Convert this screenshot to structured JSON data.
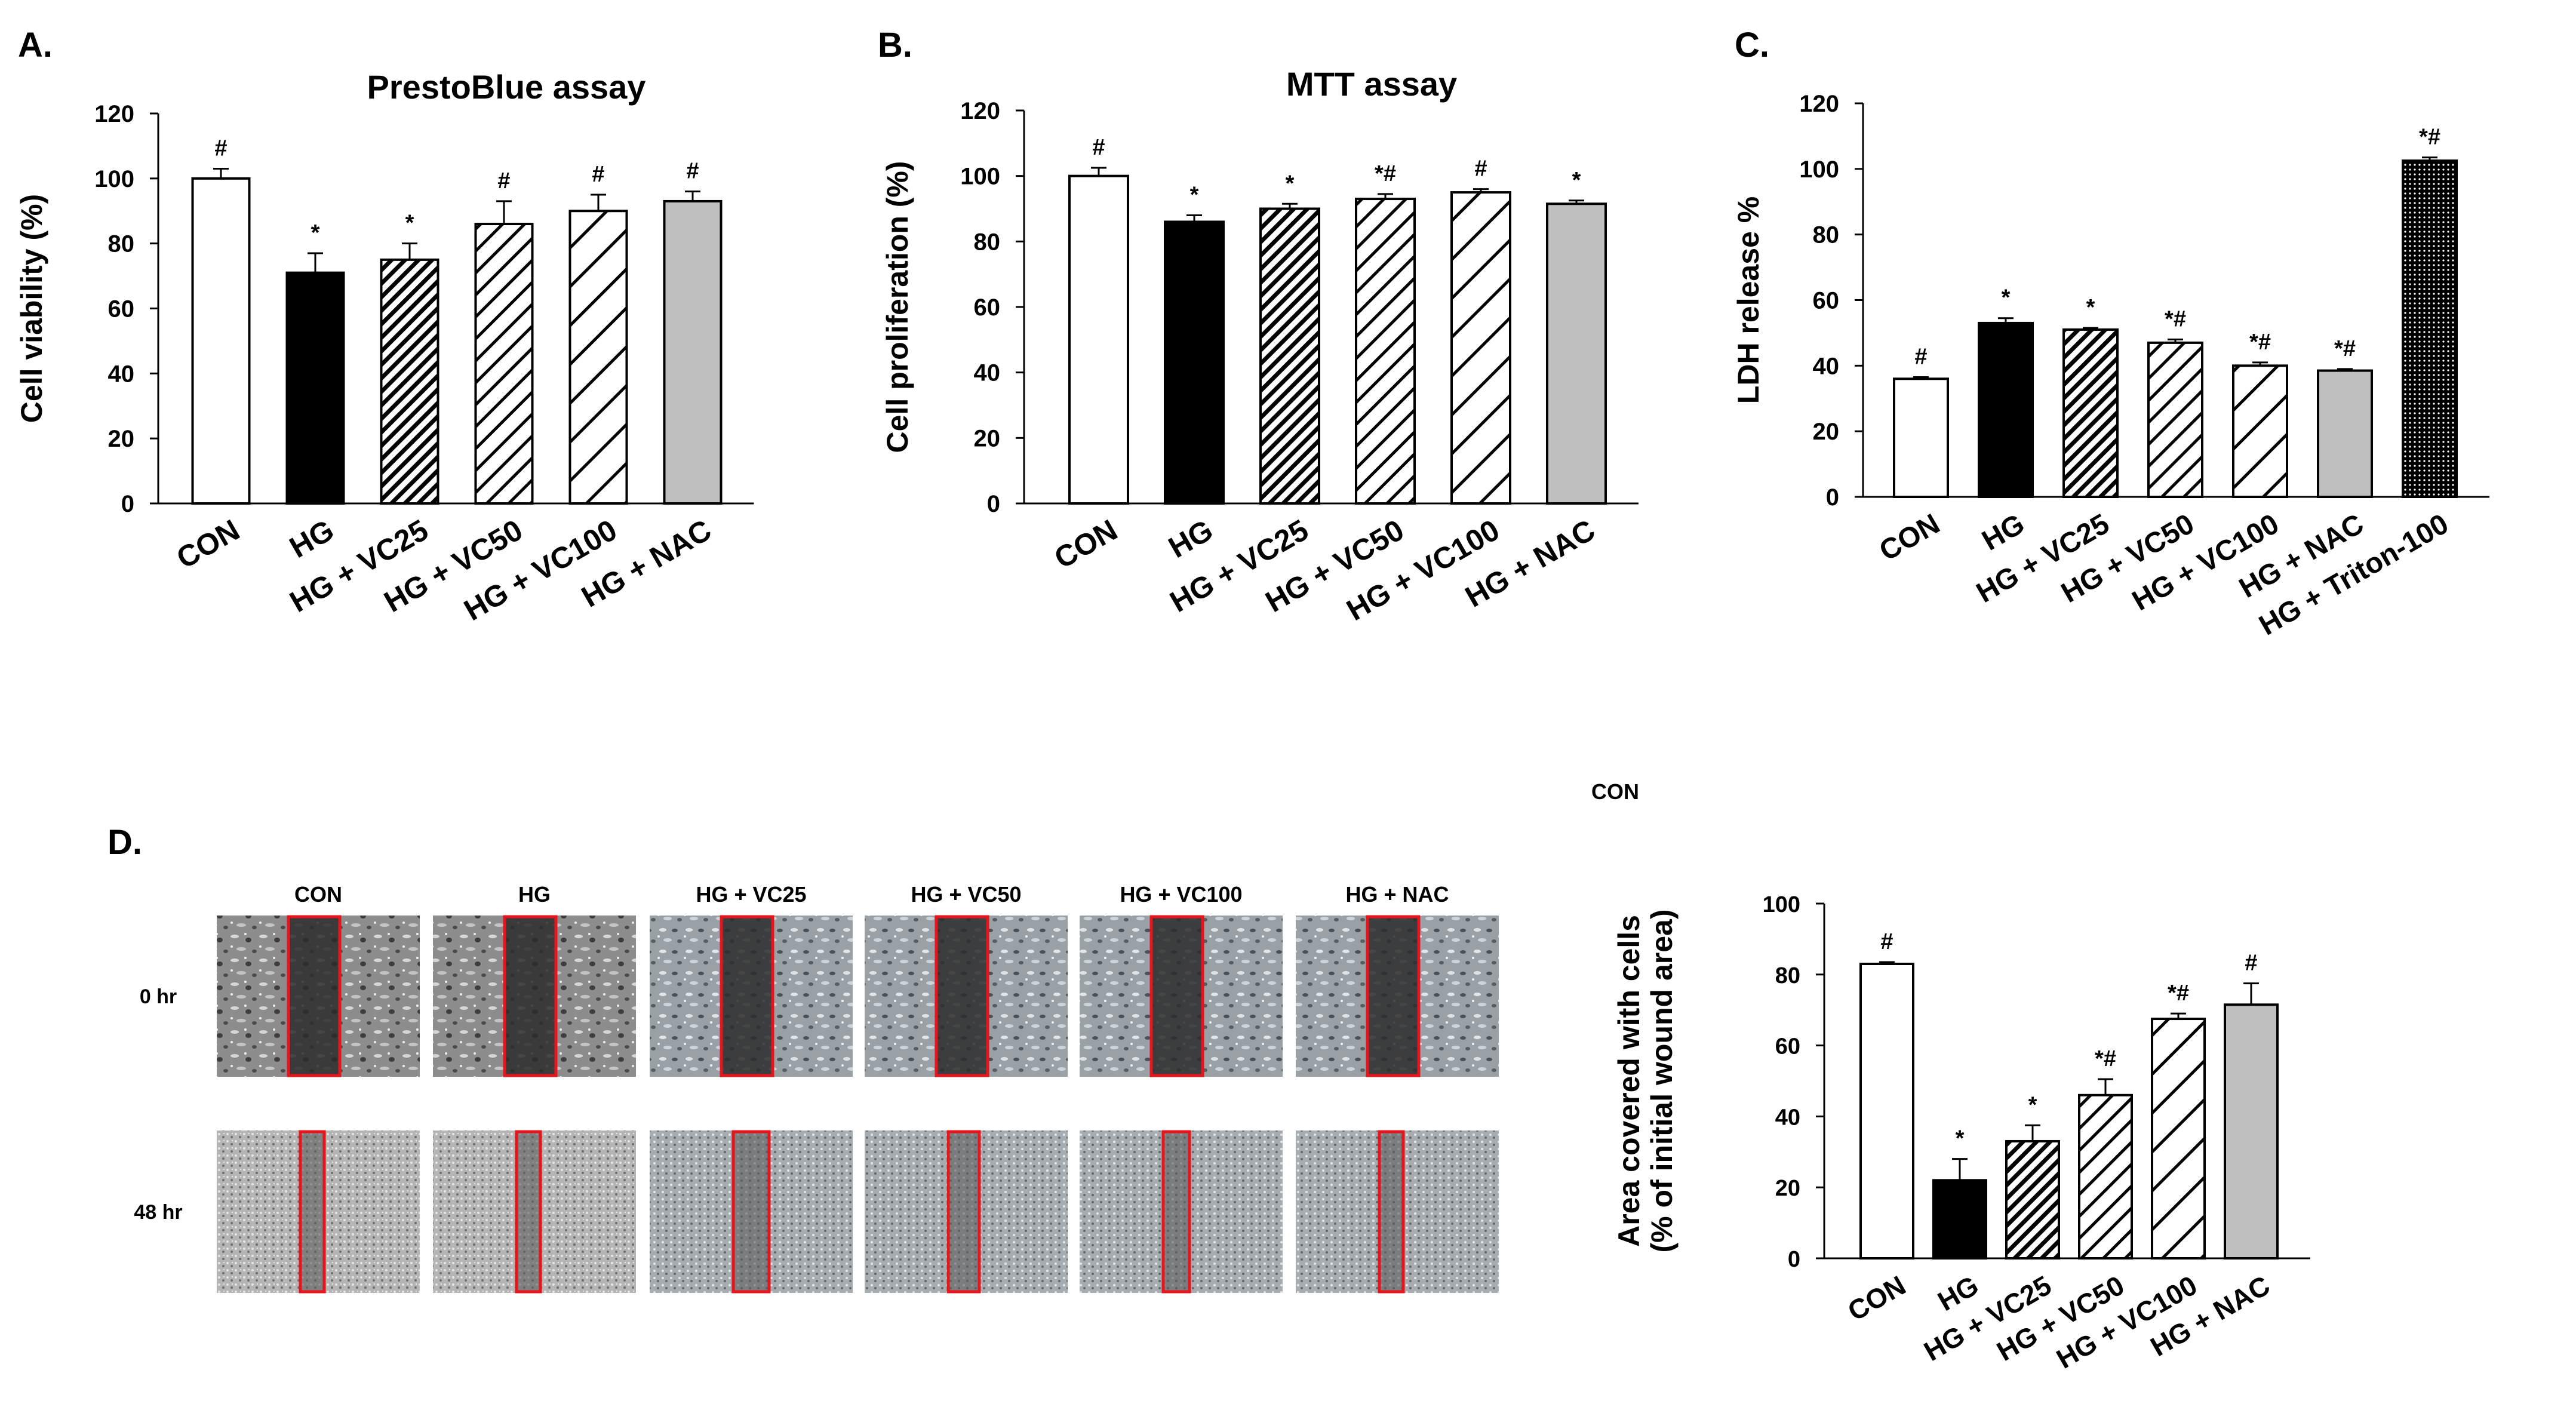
{
  "panel_labels": {
    "a": "A.",
    "b": "B.",
    "c": "C.",
    "d": "D."
  },
  "stray_label": "CON",
  "colors": {
    "bar_outline": "#000000",
    "hg_fill": "#000000",
    "nac_fill": "#bfbfbf",
    "open_fill": "#ffffff",
    "scratch_box": "#e8141c"
  },
  "wound_images": {
    "columns": [
      "CON",
      "HG",
      "HG + VC25",
      "HG + VC50",
      "HG + VC100",
      "HG + NAC"
    ],
    "rows": [
      "0 hr",
      "48 hr"
    ]
  },
  "chart_data": [
    {
      "type": "bar",
      "title": "PrestoBlue assay",
      "ylabel": "Cell viability (%)",
      "xlabel": "",
      "ylim": [
        0,
        120
      ],
      "yticks": [
        0,
        20,
        40,
        60,
        80,
        100,
        120
      ],
      "categories": [
        "CON",
        "HG",
        "HG + VC25",
        "HG + VC50",
        "HG + VC100",
        "HG + NAC"
      ],
      "values": [
        100,
        71,
        75,
        86,
        90,
        93
      ],
      "errors": [
        3,
        6,
        5,
        7,
        5,
        3
      ],
      "annotations": [
        "#",
        "*",
        "*",
        "#",
        "#",
        "#"
      ],
      "fills": [
        "open",
        "solid",
        "dense-hatch",
        "hatch",
        "wide-hatch",
        "gray"
      ]
    },
    {
      "type": "bar",
      "title": "MTT assay",
      "ylabel": "Cell proliferation (%)",
      "xlabel": "",
      "ylim": [
        0,
        120
      ],
      "yticks": [
        0,
        20,
        40,
        60,
        80,
        100,
        120
      ],
      "categories": [
        "CON",
        "HG",
        "HG + VC25",
        "HG + VC50",
        "HG + VC100",
        "HG + NAC"
      ],
      "values": [
        100,
        86,
        90,
        93,
        95,
        91.5
      ],
      "errors": [
        2.5,
        2,
        1.5,
        1.5,
        1,
        1
      ],
      "annotations": [
        "#",
        "*",
        "*",
        "*#",
        "#",
        "*"
      ],
      "fills": [
        "open",
        "solid",
        "dense-hatch",
        "hatch",
        "wide-hatch",
        "gray"
      ]
    },
    {
      "type": "bar",
      "title": "",
      "ylabel": "LDH release %",
      "xlabel": "",
      "ylim": [
        0,
        120
      ],
      "yticks": [
        0,
        20,
        40,
        60,
        80,
        100,
        120
      ],
      "categories": [
        "CON",
        "HG",
        "HG + VC25",
        "HG + VC50",
        "HG + VC100",
        "HG + NAC",
        "HG + Triton-100"
      ],
      "values": [
        36,
        53,
        51,
        47,
        40,
        38.5,
        102.5
      ],
      "errors": [
        0.5,
        1.5,
        0.5,
        1,
        1,
        0.5,
        1
      ],
      "annotations": [
        "#",
        "*",
        "*",
        "*#",
        "*#",
        "*#",
        "*#"
      ],
      "fills": [
        "open",
        "solid",
        "dense-hatch",
        "hatch",
        "wide-hatch",
        "gray",
        "dots"
      ]
    },
    {
      "type": "bar",
      "title": "",
      "ylabel": "Area covered with cells",
      "ylabel2": "(% of initial wound area)",
      "xlabel": "",
      "ylim": [
        0,
        100
      ],
      "yticks": [
        0,
        20,
        40,
        60,
        80,
        100
      ],
      "categories": [
        "CON",
        "HG",
        "HG + VC25",
        "HG + VC50",
        "HG + VC100",
        "HG + NAC"
      ],
      "values": [
        83,
        22,
        33,
        46,
        67.5,
        71.5
      ],
      "errors": [
        0.5,
        6,
        4.5,
        4.5,
        1.5,
        6
      ],
      "annotations": [
        "#",
        "*",
        "*",
        "*#",
        "*#",
        "#"
      ],
      "fills": [
        "open",
        "solid",
        "dense-hatch",
        "hatch",
        "wide-hatch",
        "gray"
      ]
    }
  ]
}
